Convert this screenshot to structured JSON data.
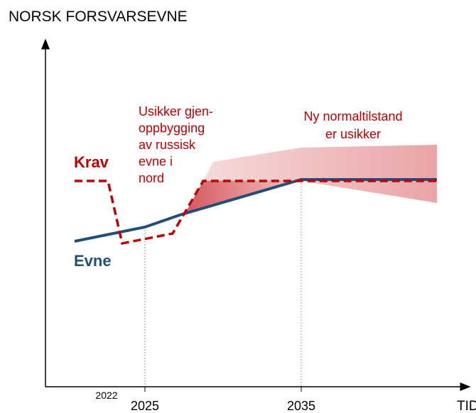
{
  "title": "NORSK FORSVARSEVNE",
  "x_axis_label": "TID",
  "x_ticks": [
    "2022",
    "2025",
    "2035"
  ],
  "series_labels": [
    "Krav",
    "Evne"
  ],
  "annotations": [
    {
      "lines": [
        "Usikker gjen-",
        "oppbygging",
        "av russisk",
        "evne i",
        "nord"
      ]
    },
    {
      "lines": [
        "Ny normaltilstand",
        "er usikker"
      ]
    }
  ]
}
